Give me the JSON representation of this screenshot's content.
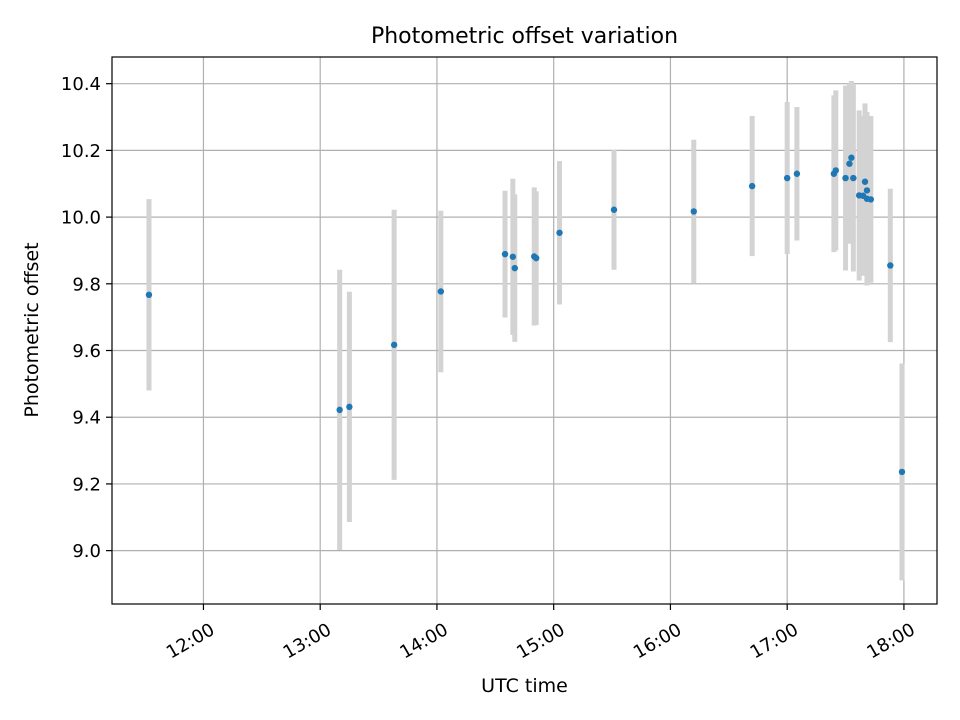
{
  "chart_data": {
    "type": "scatter",
    "title": "Photometric offset variation",
    "xlabel": "UTC time",
    "ylabel": "Photometric offset",
    "grid": true,
    "xlim": [
      "11:13",
      "18:17"
    ],
    "ylim": [
      8.84,
      10.48
    ],
    "x_ticks": [
      "12:00",
      "13:00",
      "14:00",
      "15:00",
      "16:00",
      "17:00",
      "18:00"
    ],
    "y_ticks": [
      "9.0",
      "9.2",
      "9.4",
      "9.6",
      "9.8",
      "10.0",
      "10.2",
      "10.4"
    ],
    "colors": {
      "points": "#1f77b4",
      "errorbars": "#d3d3d3",
      "grid": "#b0b0b0"
    },
    "series": [
      {
        "points": [
          {
            "x": "11:32",
            "y": 9.767,
            "err": 0.287
          },
          {
            "x": "13:10",
            "y": 9.422,
            "err": 0.42
          },
          {
            "x": "13:15",
            "y": 9.431,
            "err": 0.345
          },
          {
            "x": "13:38",
            "y": 9.617,
            "err": 0.405
          },
          {
            "x": "14:02",
            "y": 9.777,
            "err": 0.242
          },
          {
            "x": "14:35",
            "y": 9.889,
            "err": 0.19
          },
          {
            "x": "14:39",
            "y": 9.881,
            "err": 0.234
          },
          {
            "x": "14:40",
            "y": 9.847,
            "err": 0.221
          },
          {
            "x": "14:50",
            "y": 9.882,
            "err": 0.207
          },
          {
            "x": "14:51",
            "y": 9.877,
            "err": 0.2
          },
          {
            "x": "15:03",
            "y": 9.953,
            "err": 0.215
          },
          {
            "x": "15:31",
            "y": 10.022,
            "err": 0.18
          },
          {
            "x": "16:12",
            "y": 10.017,
            "err": 0.215
          },
          {
            "x": "16:42",
            "y": 10.093,
            "err": 0.21
          },
          {
            "x": "17:00",
            "y": 10.117,
            "err": 0.228
          },
          {
            "x": "17:05",
            "y": 10.13,
            "err": 0.2
          },
          {
            "x": "17:24",
            "y": 10.13,
            "err": 0.235
          },
          {
            "x": "17:25",
            "y": 10.14,
            "err": 0.24
          },
          {
            "x": "17:30",
            "y": 10.117,
            "err": 0.277
          },
          {
            "x": "17:32",
            "y": 10.16,
            "err": 0.24
          },
          {
            "x": "17:33",
            "y": 10.178,
            "err": 0.23
          },
          {
            "x": "17:34",
            "y": 10.117,
            "err": 0.28
          },
          {
            "x": "17:37",
            "y": 10.065,
            "err": 0.255
          },
          {
            "x": "17:39",
            "y": 10.064,
            "err": 0.24
          },
          {
            "x": "17:40",
            "y": 10.106,
            "err": 0.235
          },
          {
            "x": "17:41",
            "y": 10.055,
            "err": 0.26
          },
          {
            "x": "17:41",
            "y": 10.08,
            "err": 0.225
          },
          {
            "x": "17:43",
            "y": 10.053,
            "err": 0.25
          },
          {
            "x": "17:53",
            "y": 9.855,
            "err": 0.23
          },
          {
            "x": "17:59",
            "y": 9.236,
            "err": 0.325
          }
        ]
      }
    ]
  }
}
